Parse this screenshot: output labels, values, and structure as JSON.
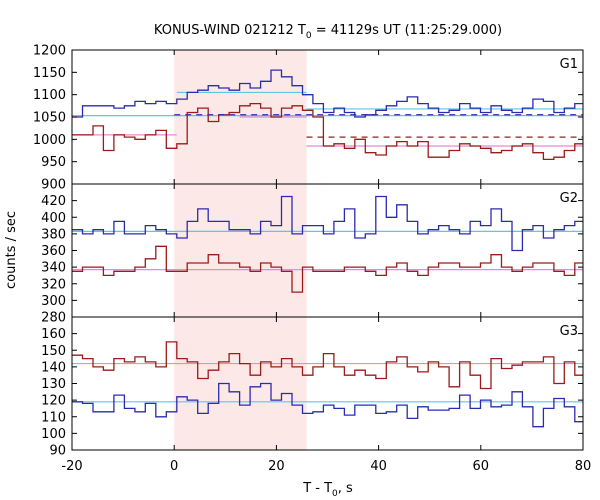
{
  "chart_data": {
    "type": "line",
    "title": "KONUS-WIND 021212 T",
    "title_sub": "0",
    "title_rest": " = 41129s UT (11:25:29.000)",
    "xlabel": "T - T",
    "xlabel_sub": "0",
    "xlabel_rest": ", s",
    "ylabel": "counts / sec",
    "xlim": [
      -20,
      80
    ],
    "x_ticks": [
      "-20",
      "0",
      "20",
      "40",
      "60",
      "80"
    ],
    "x_tick_values": [
      -20,
      0,
      20,
      40,
      60,
      80
    ],
    "highlight": {
      "from": 0,
      "to": 25.9,
      "color": "#fde8e8"
    },
    "bin_edges": [
      -20,
      -17.95,
      -15.9,
      -13.85,
      -11.8,
      -9.75,
      -7.7,
      -5.65,
      -3.6,
      -1.55,
      0.5,
      2.55,
      4.6,
      6.65,
      8.7,
      10.75,
      12.8,
      14.85,
      16.9,
      18.95,
      21,
      23.05,
      25.1,
      27.15,
      29.2,
      31.25,
      33.3,
      35.35,
      37.4,
      39.45,
      41.5,
      43.55,
      45.6,
      47.65,
      49.7,
      51.75,
      53.8,
      55.85,
      57.9,
      59.95,
      62,
      64.05,
      66.1,
      68.15,
      70.2,
      72.25,
      74.3,
      76.35,
      78.4,
      80
    ],
    "colors": {
      "blue": "#2b2bb0",
      "red": "#9b1b1b",
      "cyan": "#5bc8e8",
      "pink": "#e68ad2"
    },
    "panels": [
      {
        "label": "G1",
        "ylim": [
          900,
          1200
        ],
        "y_ticks": [
          900,
          950,
          1000,
          1050,
          1100,
          1150,
          1200
        ],
        "series": [
          {
            "color": "blue",
            "values": [
              1050,
              1075,
              1075,
              1075,
              1070,
              1075,
              1085,
              1080,
              1085,
              1080,
              1090,
              1105,
              1110,
              1120,
              1115,
              1110,
              1125,
              1115,
              1130,
              1155,
              1140,
              1120,
              1100,
              1080,
              1060,
              1070,
              1060,
              1050,
              1055,
              1065,
              1075,
              1085,
              1095,
              1080,
              1070,
              1060,
              1065,
              1080,
              1070,
              1060,
              1075,
              1065,
              1060,
              1070,
              1090,
              1085,
              1060,
              1070,
              1080
            ]
          },
          {
            "color": "red",
            "values": [
              1010,
              1010,
              1030,
              975,
              1010,
              1005,
              1000,
              1010,
              1020,
              980,
              990,
              1060,
              1070,
              1040,
              1055,
              1060,
              1075,
              1080,
              1070,
              1050,
              1070,
              1075,
              1065,
              1050,
              985,
              990,
              980,
              1000,
              970,
              965,
              985,
              995,
              985,
              995,
              960,
              960,
              975,
              990,
              985,
              980,
              970,
              975,
              985,
              990,
              970,
              955,
              960,
              975,
              990
            ]
          }
        ],
        "levels": [
          {
            "color": "cyan",
            "value": 1053,
            "from": -20,
            "to": 80
          },
          {
            "color": "cyan",
            "value": 1105,
            "from": 0.5,
            "to": 25.9
          },
          {
            "color": "cyan",
            "value": 1068,
            "from": 25.9,
            "to": 80
          },
          {
            "color": "pink",
            "value": 1010,
            "from": -20,
            "to": 0.5
          },
          {
            "color": "pink",
            "value": 1050,
            "from": 12.8,
            "to": 25.9
          },
          {
            "color": "pink",
            "value": 985,
            "from": 25.9,
            "to": 80
          }
        ],
        "dashed_levels": [
          {
            "color": "blue",
            "value": 1055,
            "from": 0,
            "to": 80
          },
          {
            "color": "red",
            "value": 1005,
            "from": 25.9,
            "to": 80
          }
        ]
      },
      {
        "label": "G2",
        "ylim": [
          280,
          440
        ],
        "y_ticks": [
          280,
          300,
          320,
          340,
          360,
          380,
          400,
          420
        ],
        "series": [
          {
            "color": "blue",
            "values": [
              385,
              380,
              385,
              380,
              395,
              380,
              380,
              390,
              385,
              380,
              375,
              395,
              410,
              395,
              395,
              385,
              385,
              380,
              395,
              390,
              425,
              380,
              390,
              390,
              380,
              395,
              410,
              375,
              380,
              425,
              400,
              415,
              395,
              380,
              385,
              390,
              385,
              380,
              395,
              390,
              410,
              395,
              360,
              385,
              390,
              375,
              385,
              390,
              395
            ]
          },
          {
            "color": "red",
            "values": [
              335,
              340,
              340,
              330,
              335,
              335,
              340,
              350,
              365,
              335,
              335,
              345,
              345,
              355,
              345,
              345,
              340,
              335,
              345,
              340,
              335,
              310,
              340,
              335,
              335,
              335,
              340,
              340,
              335,
              330,
              340,
              345,
              335,
              330,
              340,
              345,
              345,
              340,
              340,
              345,
              355,
              340,
              335,
              340,
              345,
              345,
              335,
              330,
              345
            ]
          }
        ],
        "levels": [
          {
            "color": "cyan",
            "value": 383,
            "from": -20,
            "to": 80
          },
          {
            "color": "pink",
            "value": 337,
            "from": -20,
            "to": 80
          }
        ],
        "dashed_levels": []
      },
      {
        "label": "G3",
        "ylim": [
          90,
          170
        ],
        "y_ticks": [
          90,
          100,
          110,
          120,
          130,
          140,
          150,
          160
        ],
        "series": [
          {
            "color": "blue",
            "values": [
              119,
              118,
              113,
              113,
              123,
              115,
              113,
              118,
              110,
              113,
              122,
              120,
              112,
              118,
              130,
              125,
              117,
              128,
              130,
              120,
              124,
              117,
              112,
              113,
              117,
              115,
              111,
              117,
              117,
              112,
              113,
              117,
              109,
              116,
              114,
              114,
              115,
              123,
              115,
              120,
              116,
              117,
              125,
              116,
              104,
              115,
              121,
              116,
              107
            ]
          },
          {
            "color": "red",
            "values": [
              147,
              145,
              140,
              138,
              145,
              143,
              146,
              143,
              140,
              155,
              145,
              143,
              133,
              138,
              143,
              148,
              142,
              135,
              143,
              140,
              145,
              140,
              135,
              140,
              148,
              140,
              135,
              138,
              135,
              133,
              143,
              146,
              140,
              137,
              143,
              140,
              128,
              143,
              135,
              127,
              145,
              139,
              141,
              143,
              143,
              146,
              130,
              143,
              135
            ]
          }
        ],
        "levels": [
          {
            "color": "cyan",
            "value": 119,
            "from": -20,
            "to": 80
          },
          {
            "color": "pink",
            "value": 142,
            "from": -20,
            "to": 80
          }
        ],
        "dashed_levels": []
      }
    ]
  }
}
